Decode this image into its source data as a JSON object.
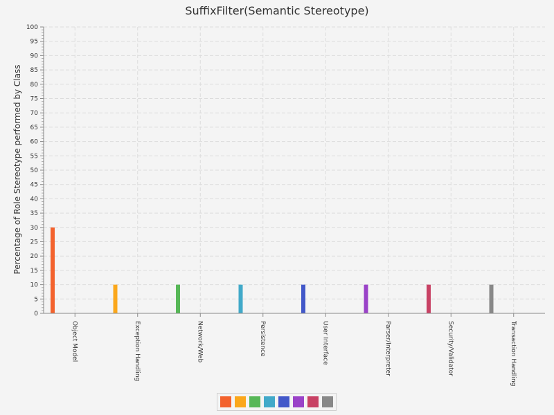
{
  "chart_data": {
    "type": "bar",
    "title": "SuffixFilter(Semantic Stereotype)",
    "xlabel": "",
    "ylabel": "Percentage of Role Stereotype performed by Class",
    "ylim": [
      0,
      100
    ],
    "y_ticks": [
      0,
      5,
      10,
      15,
      20,
      25,
      30,
      35,
      40,
      45,
      50,
      55,
      60,
      65,
      70,
      75,
      80,
      85,
      90,
      95,
      100
    ],
    "grid": true,
    "legend_position": "bottom-center",
    "categories": [
      "Object Model",
      "Exception Handling",
      "Network/Web",
      "Persistence",
      "User Interface",
      "Parser/Interpreter",
      "Security/Validator",
      "Transaction Handling"
    ],
    "values": [
      30,
      10,
      10,
      10,
      10,
      10,
      10,
      10
    ],
    "colors": [
      "#f3622d",
      "#fba71b",
      "#57b757",
      "#41a9c9",
      "#4258c9",
      "#9a42c8",
      "#c84164",
      "#888888"
    ]
  }
}
